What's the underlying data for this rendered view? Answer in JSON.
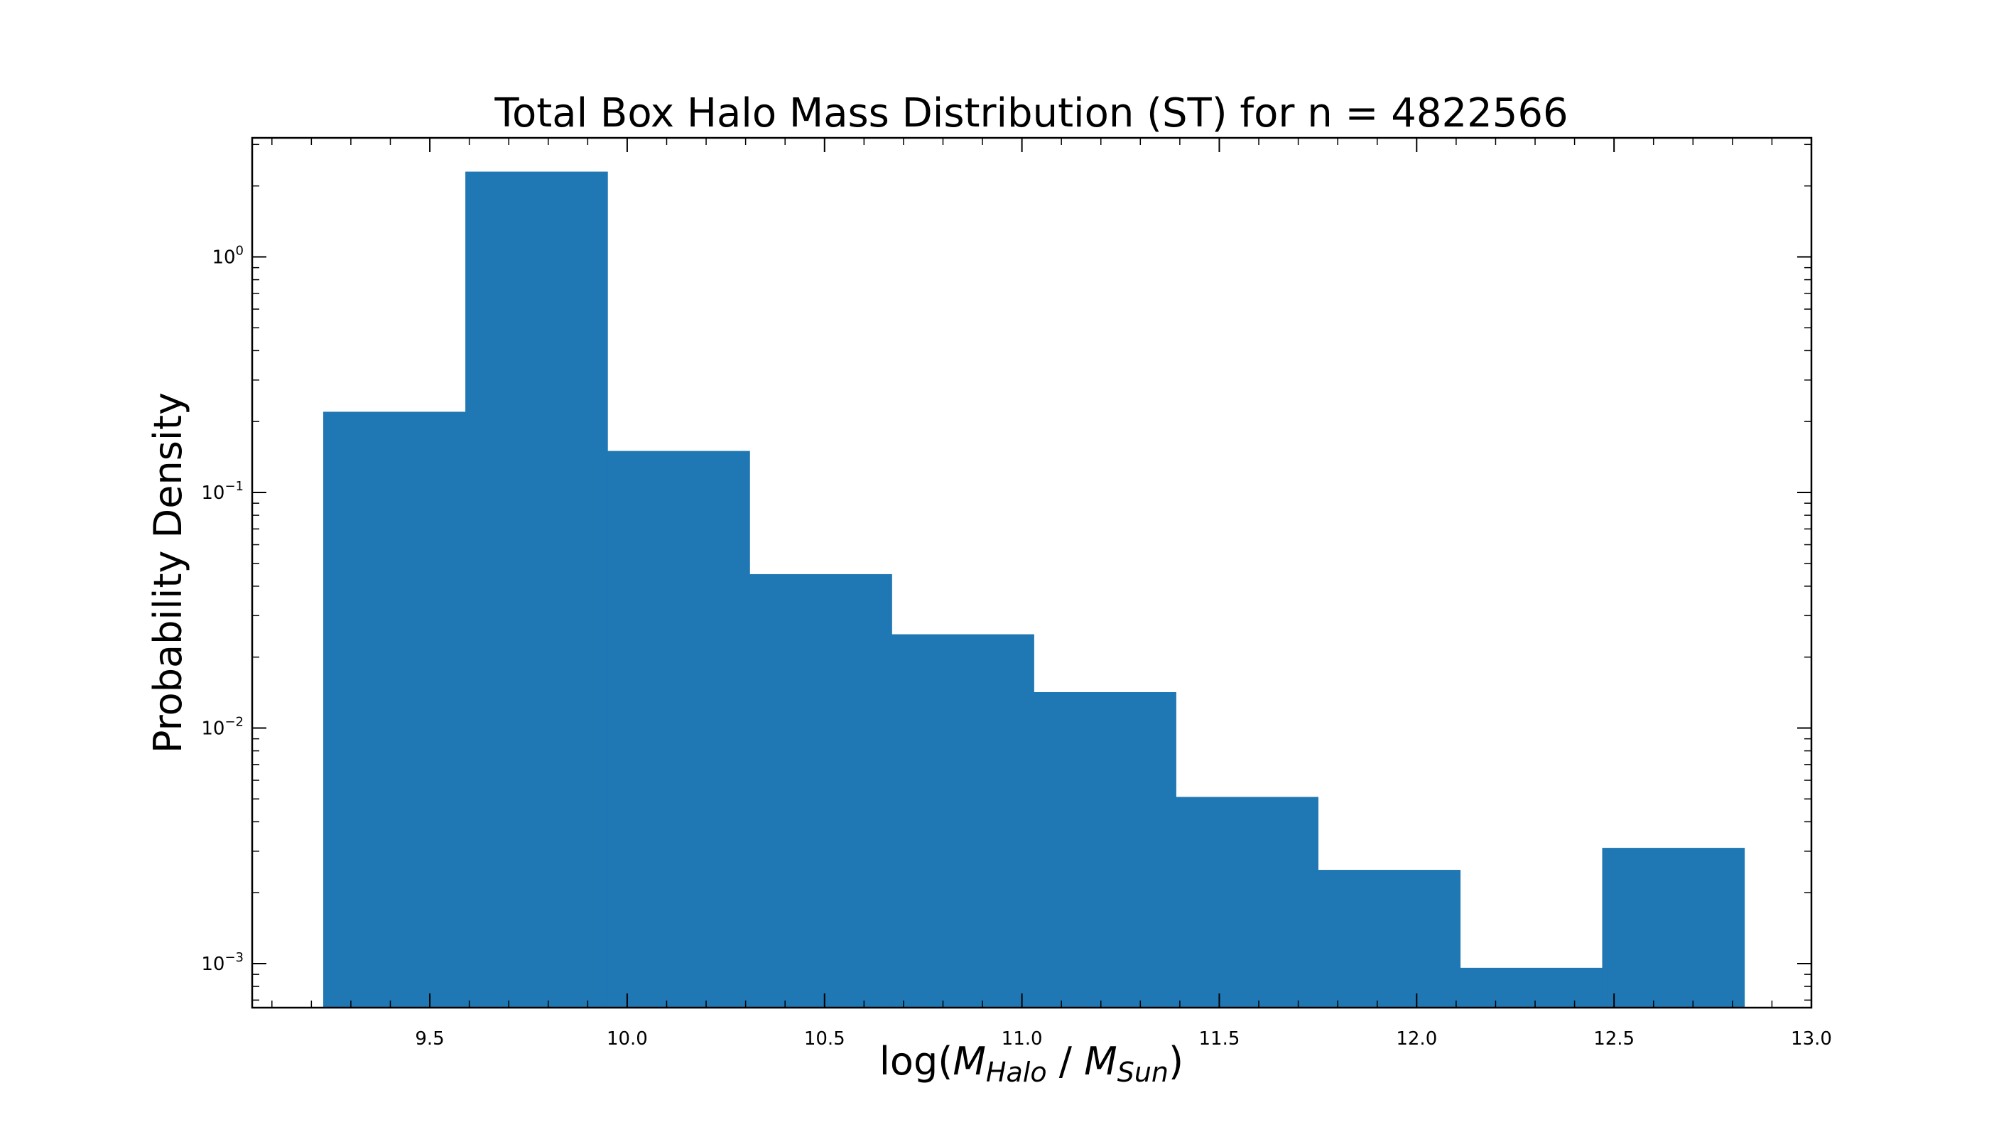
{
  "chart_data": {
    "type": "bar",
    "title": "Total Box Halo Mass Distribution (ST) for n = 4822566",
    "xlabel": {
      "prefix": "log(",
      "m1": "M",
      "sub1": "Halo",
      "sep": " / ",
      "m2": "M",
      "sub2": "Sun",
      "suffix": ")"
    },
    "ylabel": "Probability Density",
    "x_scale": "linear",
    "y_scale": "log",
    "xlim": [
      9.05,
      13.0
    ],
    "ylim": [
      0.00065,
      3.2
    ],
    "x_ticks": [
      9.5,
      10.0,
      10.5,
      11.0,
      11.5,
      12.0,
      12.5,
      13.0
    ],
    "x_tick_labels": [
      "9.5",
      "10.0",
      "10.5",
      "11.0",
      "11.5",
      "12.0",
      "12.5",
      "13.0"
    ],
    "y_ticks": [
      {
        "value": 0.001,
        "base": "10",
        "exp": "−3"
      },
      {
        "value": 0.01,
        "base": "10",
        "exp": "−2"
      },
      {
        "value": 0.1,
        "base": "10",
        "exp": "−1"
      },
      {
        "value": 1,
        "base": "10",
        "exp": "0"
      }
    ],
    "bin_edges": [
      9.23,
      9.59,
      9.95,
      10.31,
      10.67,
      11.03,
      11.39,
      11.75,
      12.11,
      12.47,
      12.83
    ],
    "values": [
      0.22,
      2.3,
      0.15,
      0.045,
      0.025,
      0.0142,
      0.0051,
      0.0025,
      0.00096,
      0.0031
    ],
    "bar_color": "#1f77b4",
    "grid": false,
    "tick_direction": "in",
    "ticks_on_all_sides": true
  }
}
